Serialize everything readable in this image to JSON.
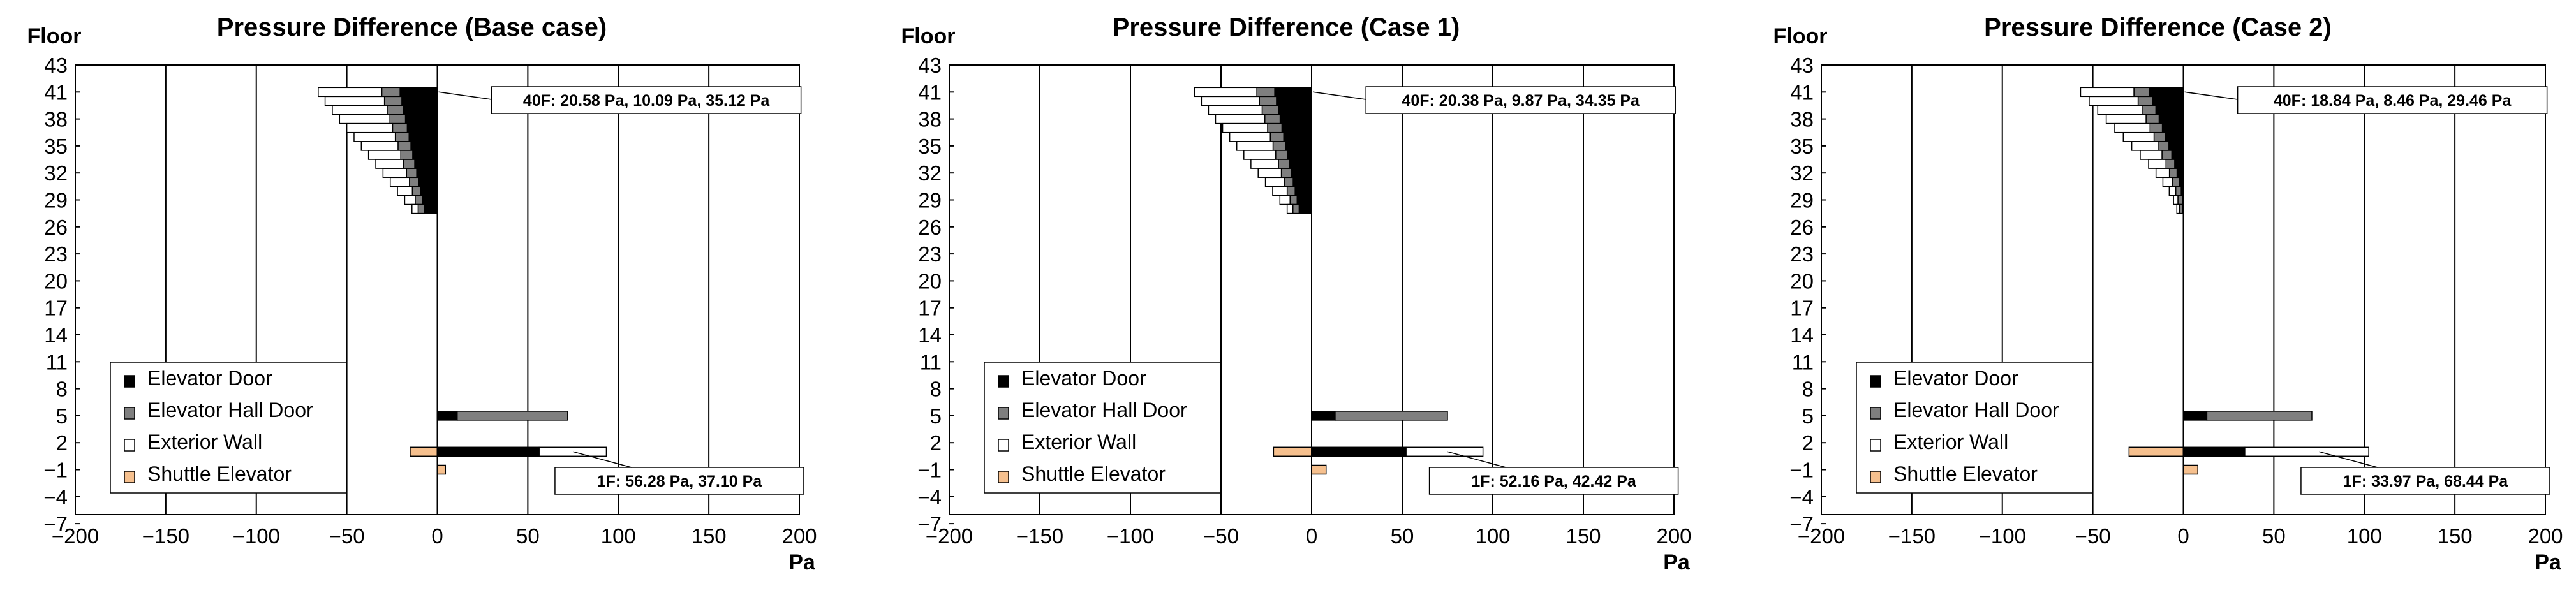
{
  "colors": {
    "elevator_door": "#000000",
    "elevator_hall_door": "#7f7f7f",
    "exterior_wall": "#ffffff",
    "shuttle_elevator": "#f6c08e"
  },
  "chart_data": [
    {
      "type": "bar",
      "orientation": "horizontal",
      "title": "Pressure Difference (Base case)",
      "ylabel": "Floor",
      "xlabel": "Pa",
      "xlim": [
        -200,
        200
      ],
      "ylim": [
        -7,
        43
      ],
      "xticks": [
        "−200",
        "−150",
        "−100",
        "−50",
        "0",
        "50",
        "100",
        "150",
        "200"
      ],
      "yticks": [
        "43",
        "41",
        "38",
        "35",
        "32",
        "29",
        "26",
        "23",
        "20",
        "17",
        "14",
        "11",
        "8",
        "5",
        "2",
        "−1",
        "−4",
        "−7"
      ],
      "legend": [
        "Elevator Door",
        "Elevator Hall Door",
        "Exterior Wall",
        "Shuttle Elevator"
      ],
      "legend_position": "lower-left",
      "annotations": {
        "top": "40F: 20.58 Pa, 10.09 Pa, 35.12 Pa",
        "bottom": "1F:  56.28 Pa, 37.10 Pa"
      },
      "series": [
        {
          "name": "Elevator Door",
          "floors": [
            40,
            39,
            38,
            37,
            36,
            35,
            34,
            33,
            32,
            31,
            30,
            29,
            28,
            27,
            4,
            0
          ],
          "starts": [
            0,
            0,
            0,
            0,
            0,
            0,
            0,
            0,
            0,
            0,
            0,
            0,
            0,
            0,
            0,
            0
          ],
          "values": [
            -20.58,
            -19.6,
            -18.6,
            -17.6,
            -16.6,
            -15.6,
            -14.6,
            -13.6,
            -12.5,
            -11.4,
            -10.3,
            -9.2,
            -8.1,
            -7.0,
            11.0,
            56.28
          ]
        },
        {
          "name": "Elevator Hall Door",
          "floors": [
            40,
            39,
            38,
            37,
            36,
            35,
            34,
            33,
            32,
            31,
            30,
            29,
            28,
            27,
            4,
            0
          ],
          "starts": [
            -20.58,
            -19.6,
            -18.6,
            -17.6,
            -16.6,
            -15.6,
            -14.6,
            -13.6,
            -12.5,
            -11.4,
            -10.3,
            -9.2,
            -8.1,
            -7.0,
            11.0,
            56.28
          ],
          "values": [
            -10.09,
            -9.6,
            -9.1,
            -8.6,
            -8.1,
            -7.6,
            -7.1,
            -6.6,
            -6.1,
            -5.6,
            -5.1,
            -4.6,
            -4.1,
            -3.6,
            61.0,
            0
          ]
        },
        {
          "name": "Exterior Wall",
          "floors": [
            40,
            39,
            38,
            37,
            36,
            35,
            34,
            33,
            32,
            31,
            30,
            29,
            28,
            27,
            4,
            0
          ],
          "starts": [
            -30.67,
            -29.2,
            -27.7,
            -26.2,
            -24.7,
            -23.2,
            -21.7,
            -20.2,
            -18.6,
            -17.0,
            -15.4,
            -13.8,
            -12.2,
            -10.6,
            72.0,
            56.28
          ],
          "values": [
            -35.12,
            -32.8,
            -30.3,
            -27.8,
            -25.3,
            -22.8,
            -20.3,
            -17.8,
            -15.4,
            -13.0,
            -10.6,
            -8.2,
            -5.8,
            -3.4,
            0,
            37.1
          ]
        },
        {
          "name": "Shuttle Elevator",
          "floors": [
            0,
            -2
          ],
          "starts": [
            0,
            0
          ],
          "values": [
            -15.0,
            4.5
          ]
        }
      ]
    },
    {
      "type": "bar",
      "orientation": "horizontal",
      "title": "Pressure Difference (Case 1)",
      "ylabel": "Floor",
      "xlabel": "Pa",
      "xlim": [
        -200,
        200
      ],
      "ylim": [
        -7,
        43
      ],
      "xticks": [
        "−200",
        "−150",
        "−100",
        "−50",
        "0",
        "50",
        "100",
        "150",
        "200"
      ],
      "yticks": [
        "43",
        "41",
        "38",
        "35",
        "32",
        "29",
        "26",
        "23",
        "20",
        "17",
        "14",
        "11",
        "8",
        "5",
        "2",
        "−1",
        "−4",
        "−7"
      ],
      "legend": [
        "Elevator Door",
        "Elevator Hall Door",
        "Exterior Wall",
        "Shuttle Elevator"
      ],
      "legend_position": "lower-left",
      "annotations": {
        "top": "40F: 20.38 Pa, 9.87 Pa, 34.35 Pa",
        "bottom": "1F:  52.16 Pa, 42.42 Pa"
      },
      "series": [
        {
          "name": "Elevator Door",
          "floors": [
            40,
            39,
            38,
            37,
            36,
            35,
            34,
            33,
            32,
            31,
            30,
            29,
            28,
            27,
            4,
            0
          ],
          "starts": [
            0,
            0,
            0,
            0,
            0,
            0,
            0,
            0,
            0,
            0,
            0,
            0,
            0,
            0,
            0,
            0
          ],
          "values": [
            -20.38,
            -19.4,
            -18.4,
            -17.4,
            -16.4,
            -15.4,
            -14.4,
            -13.4,
            -12.4,
            -11.3,
            -10.2,
            -9.1,
            -8.0,
            -6.9,
            13.0,
            52.16
          ]
        },
        {
          "name": "Elevator Hall Door",
          "floors": [
            40,
            39,
            38,
            37,
            36,
            35,
            34,
            33,
            32,
            31,
            30,
            29,
            28,
            27,
            4,
            0
          ],
          "starts": [
            -20.38,
            -19.4,
            -18.4,
            -17.4,
            -16.4,
            -15.4,
            -14.4,
            -13.4,
            -12.4,
            -11.3,
            -10.2,
            -9.1,
            -8.0,
            -6.9,
            13.0,
            52.16
          ],
          "values": [
            -9.87,
            -9.4,
            -8.9,
            -8.4,
            -7.9,
            -7.4,
            -6.9,
            -6.4,
            -5.9,
            -5.4,
            -4.9,
            -4.4,
            -3.9,
            -3.4,
            62.0,
            0
          ]
        },
        {
          "name": "Exterior Wall",
          "floors": [
            40,
            39,
            38,
            37,
            36,
            35,
            34,
            33,
            32,
            31,
            30,
            29,
            28,
            27,
            4,
            0
          ],
          "starts": [
            -30.25,
            -28.8,
            -27.3,
            -25.8,
            -24.3,
            -22.8,
            -21.3,
            -19.8,
            -18.3,
            -16.7,
            -15.1,
            -13.5,
            -11.9,
            -10.3,
            75.0,
            52.16
          ],
          "values": [
            -34.35,
            -32.0,
            -29.6,
            -27.2,
            -24.8,
            -22.4,
            -20.0,
            -17.6,
            -15.2,
            -12.8,
            -10.4,
            -8.0,
            -5.6,
            -3.2,
            0,
            42.42
          ]
        },
        {
          "name": "Shuttle Elevator",
          "floors": [
            0,
            -2
          ],
          "starts": [
            0,
            0
          ],
          "values": [
            -21.0,
            8.0
          ]
        }
      ]
    },
    {
      "type": "bar",
      "orientation": "horizontal",
      "title": "Pressure Difference (Case 2)",
      "ylabel": "Floor",
      "xlabel": "Pa",
      "xlim": [
        -200,
        200
      ],
      "ylim": [
        -7,
        43
      ],
      "xticks": [
        "−200",
        "−150",
        "−100",
        "−50",
        "0",
        "50",
        "100",
        "150",
        "200"
      ],
      "yticks": [
        "43",
        "41",
        "38",
        "35",
        "32",
        "29",
        "26",
        "23",
        "20",
        "17",
        "14",
        "11",
        "8",
        "5",
        "2",
        "−1",
        "−4",
        "−7"
      ],
      "legend": [
        "Elevator Door",
        "Elevator Hall Door",
        "Exterior Wall",
        "Shuttle Elevator"
      ],
      "legend_position": "lower-left",
      "annotations": {
        "top": "40F: 18.84 Pa, 8.46 Pa, 29.46 Pa",
        "bottom": "1F:  33.97 Pa, 68.44 Pa"
      },
      "series": [
        {
          "name": "Elevator Door",
          "floors": [
            40,
            39,
            38,
            37,
            36,
            35,
            34,
            33,
            32,
            31,
            30,
            29,
            28,
            27,
            4,
            0
          ],
          "starts": [
            0,
            0,
            0,
            0,
            0,
            0,
            0,
            0,
            0,
            0,
            0,
            0,
            0,
            0,
            0,
            0
          ],
          "values": [
            -18.84,
            -17.0,
            -15.2,
            -13.4,
            -11.6,
            -9.8,
            -8.0,
            -6.4,
            -4.8,
            -3.5,
            -2.3,
            -1.2,
            -0.6,
            -0.3,
            13.0,
            33.97
          ]
        },
        {
          "name": "Elevator Hall Door",
          "floors": [
            40,
            39,
            38,
            37,
            36,
            35,
            34,
            33,
            32,
            31,
            30,
            29,
            28,
            27,
            4,
            0
          ],
          "starts": [
            -18.84,
            -17.0,
            -15.2,
            -13.4,
            -11.6,
            -9.8,
            -8.0,
            -6.4,
            -4.8,
            -3.5,
            -2.3,
            -1.2,
            -0.6,
            -0.3,
            13.0,
            33.97
          ],
          "values": [
            -8.46,
            -8.0,
            -7.6,
            -7.2,
            -6.8,
            -6.4,
            -6.0,
            -5.4,
            -4.8,
            -4.2,
            -3.6,
            -3.0,
            -2.4,
            -1.8,
            58.0,
            0
          ]
        },
        {
          "name": "Exterior Wall",
          "floors": [
            40,
            39,
            38,
            37,
            36,
            35,
            34,
            33,
            32,
            31,
            30,
            29,
            28,
            27,
            4,
            0
          ],
          "starts": [
            -27.3,
            -25.0,
            -22.8,
            -20.6,
            -18.4,
            -16.2,
            -14.0,
            -11.8,
            -9.6,
            -7.7,
            -5.9,
            -4.2,
            -3.0,
            -2.1,
            71.0,
            33.97
          ],
          "values": [
            -29.46,
            -27.0,
            -24.5,
            -22.0,
            -19.5,
            -17.0,
            -14.5,
            -12.0,
            -9.6,
            -7.4,
            -5.4,
            -3.6,
            -2.4,
            -1.5,
            0,
            68.44
          ]
        },
        {
          "name": "Shuttle Elevator",
          "floors": [
            0,
            -2
          ],
          "starts": [
            0,
            0
          ],
          "values": [
            -30.0,
            8.0
          ]
        }
      ]
    }
  ]
}
